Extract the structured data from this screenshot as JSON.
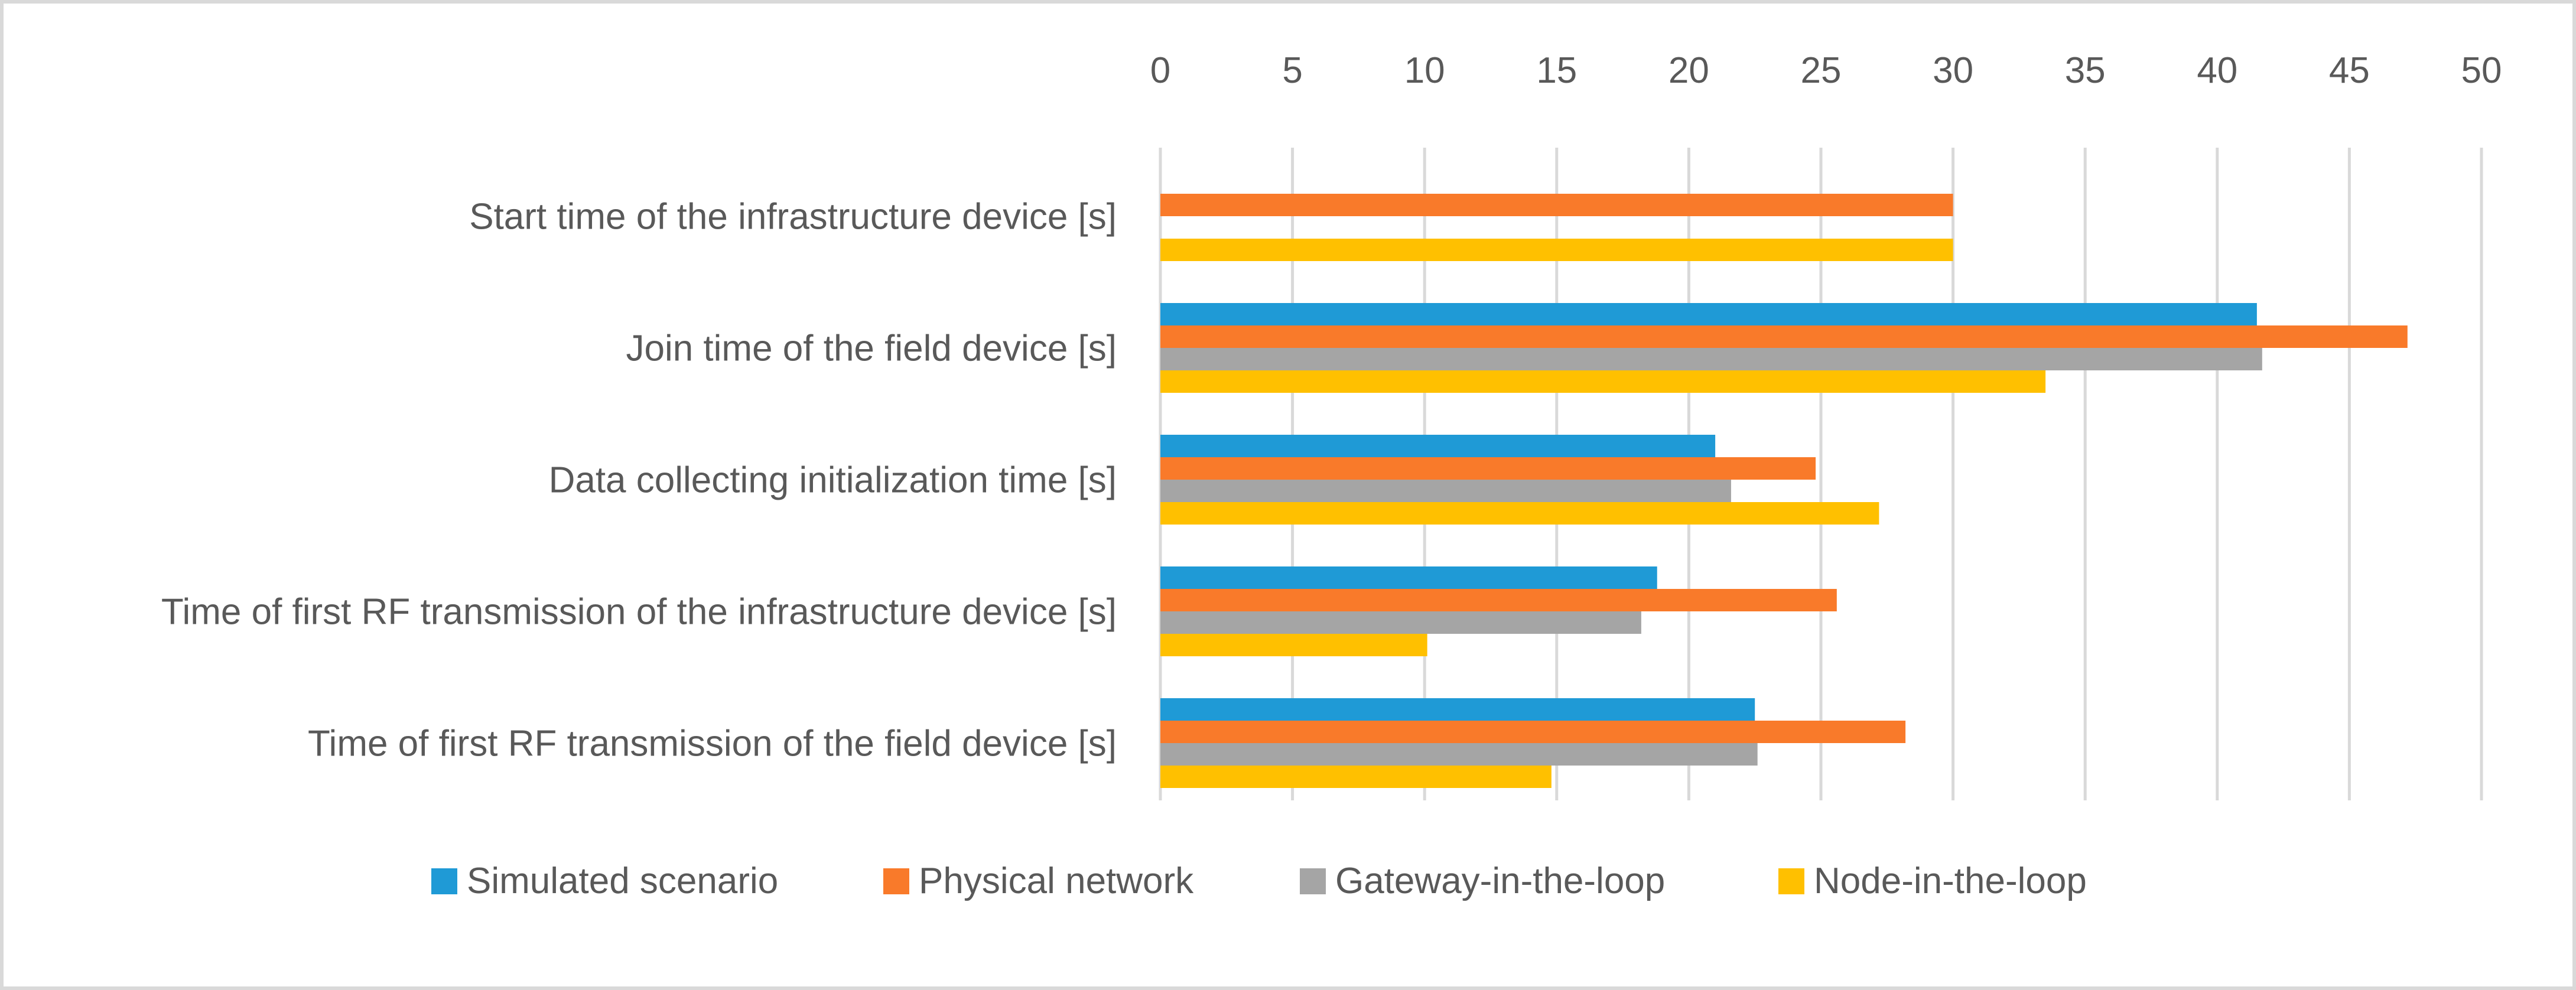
{
  "chart_data": {
    "type": "bar",
    "orientation": "horizontal",
    "title": "",
    "xlabel": "",
    "ylabel": "",
    "xlim": [
      0,
      50
    ],
    "ticks": [
      0,
      5,
      10,
      15,
      20,
      25,
      30,
      35,
      40,
      45,
      50
    ],
    "tick_labels": [
      "0",
      "5",
      "10",
      "15",
      "20",
      "25",
      "30",
      "35",
      "40",
      "45",
      "50"
    ],
    "x_axis_position": "top",
    "grid": true,
    "legend_position": "bottom",
    "categories": [
      "Start time of the infrastructure device [s]",
      "Join time of the field device [s]",
      "Data collecting initialization time [s]",
      "Time of first RF transmission of the infrastructure device [s]",
      "Time of first RF transmission of the field device [s]"
    ],
    "series": [
      {
        "name": "Simulated scenario",
        "color": "#1F9AD6",
        "values": [
          null,
          41.5,
          21.0,
          18.8,
          22.5
        ]
      },
      {
        "name": "Physical network",
        "color": "#F97A2A",
        "values": [
          30.0,
          47.2,
          24.8,
          25.6,
          28.2
        ]
      },
      {
        "name": "Gateway-in-the-loop",
        "color": "#A5A5A5",
        "values": [
          null,
          41.7,
          21.6,
          18.2,
          22.6
        ]
      },
      {
        "name": "Node-in-the-loop",
        "color": "#FFC000",
        "values": [
          30.0,
          33.5,
          27.2,
          10.1,
          14.8
        ]
      }
    ]
  }
}
